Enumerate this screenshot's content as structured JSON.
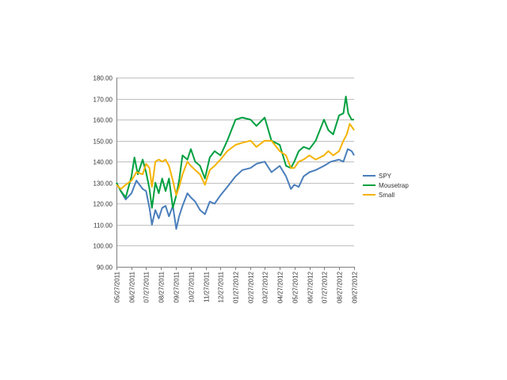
{
  "chart_data": {
    "type": "line",
    "title": "",
    "xlabel": "",
    "ylabel": "",
    "ylim": [
      90,
      180
    ],
    "y_ticks": [
      "90.00",
      "100.00",
      "110.00",
      "120.00",
      "130.00",
      "140.00",
      "150.00",
      "160.00",
      "170.00",
      "180.00"
    ],
    "x_ticks": [
      "05/27/2011",
      "06/27/2011",
      "07/27/2011",
      "08/27/2011",
      "09/27/2011",
      "10/27/2011",
      "11/27/2011",
      "12/27/2011",
      "01/27/2012",
      "02/27/2012",
      "03/27/2012",
      "04/27/2012",
      "05/27/2012",
      "06/27/2012",
      "07/27/2012",
      "08/27/2012",
      "09/27/2012"
    ],
    "grid": "horizontal",
    "legend_position": "right",
    "series": [
      {
        "name": "SPY",
        "color": "#4a7ebb",
        "x": [
          "2011-05-27",
          "2011-06-05",
          "2011-06-15",
          "2011-06-27",
          "2011-07-07",
          "2011-07-20",
          "2011-07-27",
          "2011-08-03",
          "2011-08-08",
          "2011-08-15",
          "2011-08-22",
          "2011-08-29",
          "2011-09-05",
          "2011-09-12",
          "2011-09-20",
          "2011-09-27",
          "2011-10-03",
          "2011-10-10",
          "2011-10-20",
          "2011-10-27",
          "2011-11-05",
          "2011-11-15",
          "2011-11-25",
          "2011-12-05",
          "2011-12-15",
          "2011-12-27",
          "2012-01-10",
          "2012-01-27",
          "2012-02-10",
          "2012-02-27",
          "2012-03-10",
          "2012-03-27",
          "2012-04-10",
          "2012-04-27",
          "2012-05-10",
          "2012-05-20",
          "2012-05-27",
          "2012-06-05",
          "2012-06-15",
          "2012-06-27",
          "2012-07-10",
          "2012-07-27",
          "2012-08-10",
          "2012-08-27",
          "2012-09-05",
          "2012-09-14",
          "2012-09-22",
          "2012-09-27"
        ],
        "values": [
          130,
          126,
          122,
          125,
          131,
          127,
          126,
          118,
          110,
          117,
          113,
          118,
          119,
          114,
          119,
          108,
          114,
          119,
          125,
          123,
          121,
          117,
          115,
          121,
          120,
          124,
          128,
          133,
          136,
          137,
          139,
          140,
          135,
          138,
          133,
          127,
          129,
          128,
          133,
          135,
          136,
          138,
          140,
          141,
          140,
          146,
          145,
          143
        ]
      },
      {
        "name": "Mousetrap",
        "color": "#00a040",
        "x": [
          "2011-05-27",
          "2011-06-05",
          "2011-06-15",
          "2011-06-27",
          "2011-07-03",
          "2011-07-10",
          "2011-07-20",
          "2011-07-27",
          "2011-08-03",
          "2011-08-08",
          "2011-08-15",
          "2011-08-22",
          "2011-08-29",
          "2011-09-05",
          "2011-09-12",
          "2011-09-20",
          "2011-09-27",
          "2011-10-03",
          "2011-10-10",
          "2011-10-20",
          "2011-10-27",
          "2011-11-05",
          "2011-11-15",
          "2011-11-25",
          "2011-12-05",
          "2011-12-15",
          "2011-12-27",
          "2012-01-10",
          "2012-01-27",
          "2012-02-10",
          "2012-02-27",
          "2012-03-10",
          "2012-03-27",
          "2012-04-10",
          "2012-04-27",
          "2012-05-10",
          "2012-05-20",
          "2012-05-27",
          "2012-06-05",
          "2012-06-15",
          "2012-06-27",
          "2012-07-10",
          "2012-07-27",
          "2012-08-05",
          "2012-08-15",
          "2012-08-27",
          "2012-09-05",
          "2012-09-10",
          "2012-09-15",
          "2012-09-22",
          "2012-09-27"
        ],
        "values": [
          130,
          126,
          123,
          133,
          142,
          134,
          141,
          135,
          127,
          118,
          130,
          125,
          132,
          126,
          132,
          118,
          124,
          131,
          143,
          141,
          146,
          140,
          138,
          132,
          142,
          145,
          143,
          150,
          160,
          161,
          160,
          157,
          161,
          150,
          148,
          138,
          137,
          140,
          145,
          147,
          146,
          150,
          160,
          155,
          153,
          162,
          163,
          171,
          163,
          160,
          160
        ]
      },
      {
        "name": "Small",
        "color": "#f5b301",
        "x": [
          "2011-05-27",
          "2011-06-05",
          "2011-06-15",
          "2011-06-27",
          "2011-07-07",
          "2011-07-20",
          "2011-07-27",
          "2011-08-03",
          "2011-08-08",
          "2011-08-15",
          "2011-08-22",
          "2011-08-29",
          "2011-09-05",
          "2011-09-12",
          "2011-09-20",
          "2011-09-27",
          "2011-10-03",
          "2011-10-10",
          "2011-10-20",
          "2011-10-27",
          "2011-11-05",
          "2011-11-15",
          "2011-11-25",
          "2011-12-05",
          "2011-12-15",
          "2011-12-27",
          "2012-01-10",
          "2012-01-27",
          "2012-02-10",
          "2012-02-27",
          "2012-03-10",
          "2012-03-27",
          "2012-04-10",
          "2012-04-27",
          "2012-05-10",
          "2012-05-20",
          "2012-05-27",
          "2012-06-05",
          "2012-06-15",
          "2012-06-27",
          "2012-07-10",
          "2012-07-27",
          "2012-08-05",
          "2012-08-15",
          "2012-08-27",
          "2012-09-05",
          "2012-09-12",
          "2012-09-18",
          "2012-09-27"
        ],
        "values": [
          129,
          127,
          129,
          131,
          135,
          134,
          139,
          137,
          128,
          140,
          141,
          140,
          141,
          138,
          131,
          124,
          128,
          134,
          140,
          138,
          136,
          134,
          129,
          136,
          138,
          141,
          145,
          148,
          149,
          150,
          147,
          150,
          150,
          145,
          143,
          137,
          137,
          140,
          141,
          143,
          141,
          143,
          145,
          143,
          145,
          150,
          153,
          158,
          155
        ]
      }
    ]
  }
}
